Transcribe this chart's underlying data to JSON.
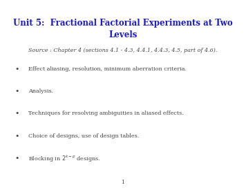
{
  "background_color": "#ffffff",
  "title_line1": "Unit 5:  Fractional Factorial Experiments at Two",
  "title_line2": "Levels",
  "title_color": "#1a1acd",
  "title_fontsize": 8.5,
  "source_text": "Source : Chapter 4 (sections 4.1 - 4.3, 4.4.1, 4.4.3, 4.5, part of 4.6).",
  "source_color": "#444444",
  "source_fontsize": 5.8,
  "bullet_color": "#444444",
  "bullet_fontsize": 5.8,
  "bullets": [
    "Effect aliasing, resolution, minimum aberration criteria.",
    "Analysis.",
    "Techniques for resolving ambiguities in aliased effects.",
    "Choice of designs, use of design tables.",
    "Blocking in $2^{k-p}$ designs."
  ],
  "page_number": "1",
  "page_number_color": "#444444",
  "page_number_fontsize": 5.5
}
